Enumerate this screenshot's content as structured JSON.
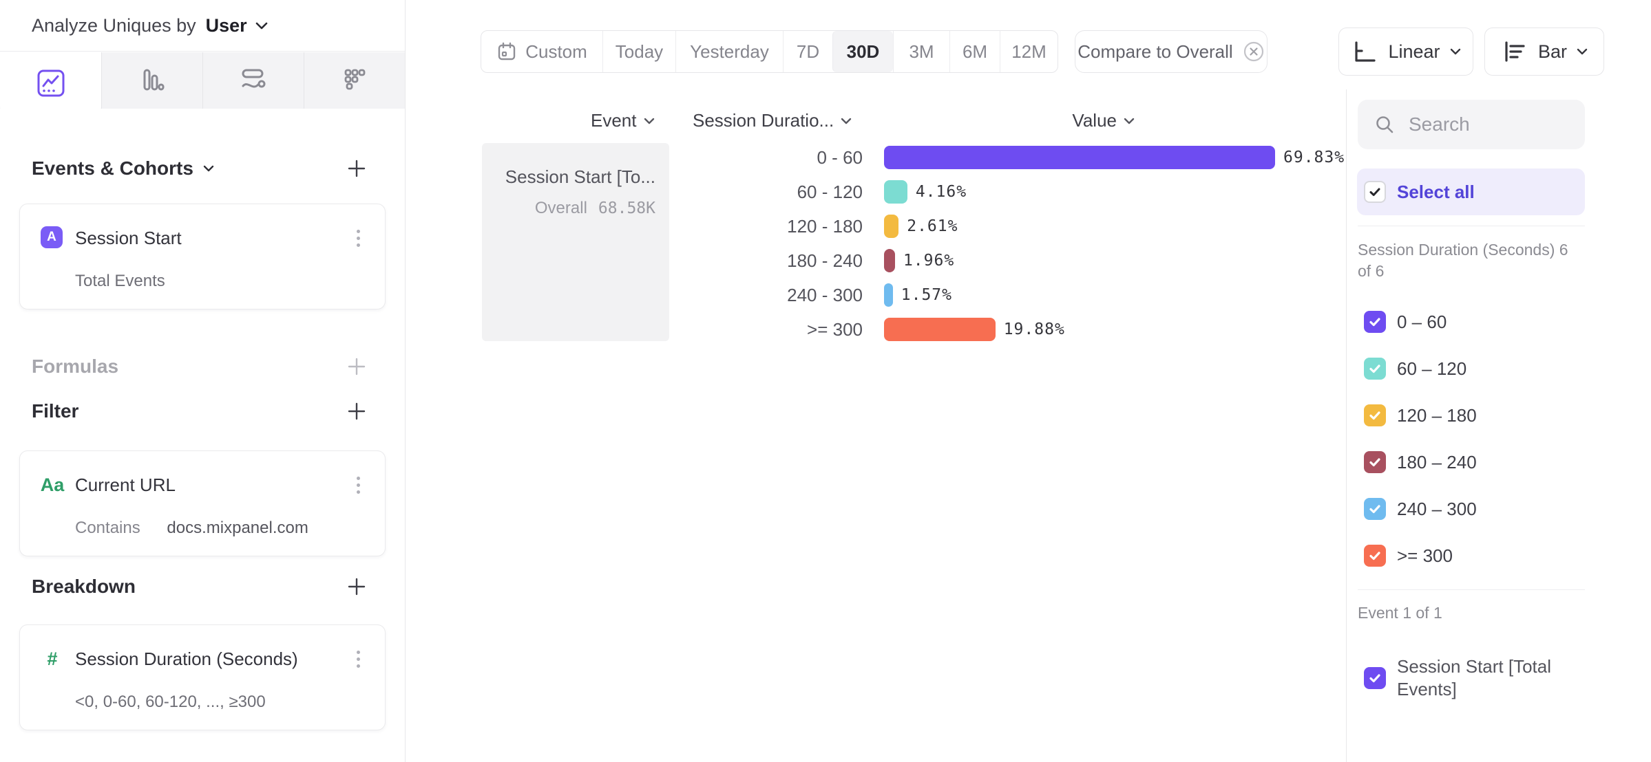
{
  "header": {
    "analyze_by_label": "Analyze Uniques by",
    "analyze_by_value": "User"
  },
  "sidebar": {
    "tabs": [
      {
        "icon": "insights-line-chart-icon",
        "selected": true
      },
      {
        "icon": "bar-chart-icon",
        "selected": false
      },
      {
        "icon": "flows-icon",
        "selected": false
      },
      {
        "icon": "retention-dots-icon",
        "selected": false
      }
    ],
    "events_title": "Events & Cohorts",
    "event_card": {
      "badge": "A",
      "title": "Session Start",
      "subtitle": "Total Events"
    },
    "formulas_title": "Formulas",
    "filter_title": "Filter",
    "filter_card": {
      "icon": "Aa",
      "title": "Current URL",
      "operator": "Contains",
      "value": "docs.mixpanel.com"
    },
    "breakdown_title": "Breakdown",
    "breakdown_card": {
      "icon": "#",
      "title": "Session Duration (Seconds)",
      "subtitle": "<0, 0-60, 60-120, ..., ≥300"
    }
  },
  "toolbar": {
    "date_ranges": [
      "Custom",
      "Today",
      "Yesterday",
      "7D",
      "30D",
      "3M",
      "6M",
      "12M"
    ],
    "selected_range": "30D",
    "compare_label": "Compare to Overall",
    "scale_button": "Linear",
    "chart_type_button": "Bar"
  },
  "chart_data": {
    "type": "bar",
    "orientation": "horizontal",
    "columns": {
      "event": "Event",
      "breakdown": "Session Duratio...",
      "value": "Value"
    },
    "event_cell": {
      "title": "Session Start [To...",
      "overall_label": "Overall",
      "overall_value": "68.58K"
    },
    "categories": [
      "0 - 60",
      "60 - 120",
      "120 - 180",
      "180 - 240",
      "240 - 300",
      ">= 300"
    ],
    "values": [
      69.83,
      4.16,
      2.61,
      1.96,
      1.57,
      19.88
    ],
    "value_labels": [
      "69.83%",
      "4.16%",
      "2.61%",
      "1.96%",
      "1.57%",
      "19.88%"
    ],
    "colors": [
      "#6e4cf1",
      "#7cdcd2",
      "#f3ba40",
      "#a8505f",
      "#6fbbef",
      "#f76e51"
    ],
    "xlim": [
      0,
      69.83
    ],
    "unit": "%",
    "legend_position": "right-panel"
  },
  "right_panel": {
    "search_placeholder": "Search",
    "select_all_label": "Select all",
    "breakdown_group_label": "Session Duration (Seconds) 6 of 6",
    "items": [
      {
        "label": "0 – 60",
        "checked": true
      },
      {
        "label": "60 – 120",
        "checked": true
      },
      {
        "label": "120 – 180",
        "checked": true
      },
      {
        "label": "180 – 240",
        "checked": true
      },
      {
        "label": "240 – 300",
        "checked": true
      },
      {
        "label": ">= 300",
        "checked": true
      }
    ],
    "event_group_label": "Event 1 of 1",
    "event_item": {
      "label": "Session Start [Total Events]",
      "checked": true
    }
  }
}
